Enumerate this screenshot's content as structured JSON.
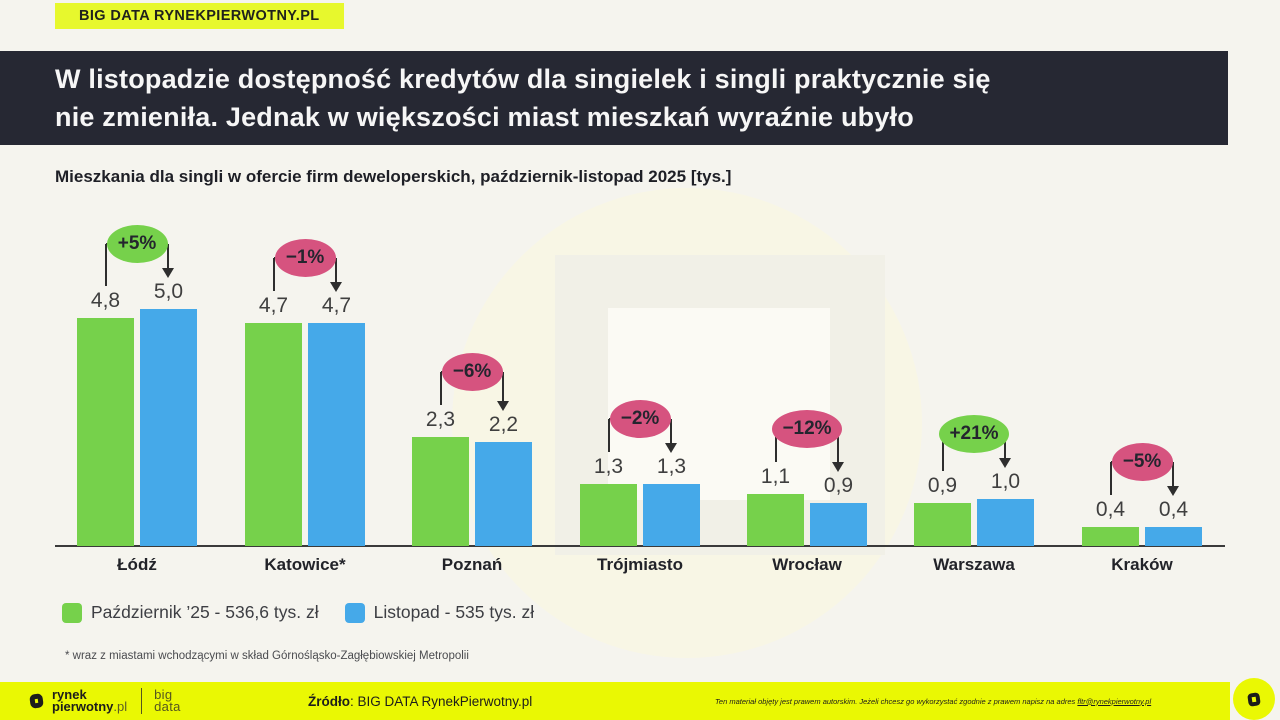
{
  "brand": {
    "label": "BIG DATA RYNEKPIERWOTNY.PL"
  },
  "headline": {
    "line1": "W listopadzie dostępność kredytów dla singielek i singli praktycznie się",
    "line2": "nie zmieniła. Jednak w większości miast mieszkań wyraźnie ubyło"
  },
  "chart_data": {
    "type": "bar",
    "title": "Mieszkania dla singli w ofercie firm deweloperskich, październik-listopad 2025 [tys.]",
    "categories": [
      "Łódź",
      "Katowice*",
      "Poznań",
      "Trójmiasto",
      "Wrocław",
      "Warszawa",
      "Kraków"
    ],
    "series": [
      {
        "name": "Październik ’25 - 536,6 tys. zł",
        "color": "#76d14b",
        "values": [
          4.8,
          4.7,
          2.3,
          1.3,
          1.1,
          0.9,
          0.4
        ],
        "labels": [
          "4,8",
          "4,7",
          "2,3",
          "1,3",
          "1,1",
          "0,9",
          "0,4"
        ]
      },
      {
        "name": "Listopad - 535 tys. zł",
        "color": "#45a9e9",
        "values": [
          5.0,
          4.7,
          2.2,
          1.3,
          0.9,
          1.0,
          0.4
        ],
        "labels": [
          "5,0",
          "4,7",
          "2,2",
          "1,3",
          "0,9",
          "1,0",
          "0,4"
        ]
      }
    ],
    "change_badges": [
      {
        "label": "+5%",
        "positive": true
      },
      {
        "label": "−1%",
        "positive": false
      },
      {
        "label": "−6%",
        "positive": false
      },
      {
        "label": "−2%",
        "positive": false
      },
      {
        "label": "−12%",
        "positive": false
      },
      {
        "label": "+21%",
        "positive": true
      },
      {
        "label": "−5%",
        "positive": false
      }
    ],
    "ylim": [
      0,
      5.2
    ],
    "grid": false,
    "legend_position": "bottom"
  },
  "footnote": "* wraz z miastami wchodzącymi w skład Górnośląsko-Zagłębiowskiej Metropolii",
  "footer": {
    "logo_top": "rynek",
    "logo_bold": "pierwotny",
    "logo_suffix": ".pl",
    "big1": "big",
    "big2": "data",
    "source_label": "Źródło",
    "source_rest": ": BIG DATA RynekPierwotny.pl",
    "fineprint": "Ten materiał objęty jest prawem autorskim. Jeżeli chcesz go wykorzystać zgodnie z prawem napisz na adres ",
    "email": "fltr@rynekpierwotny.pl"
  },
  "colors": {
    "background": "#f5f4ee",
    "panel_dark": "#262833",
    "brand_yellow": "#e7f82d",
    "footer_yellow": "#eaf803",
    "bar_october": "#76d14b",
    "bar_november": "#45a9e9",
    "badge_positive": "#76d14b",
    "badge_negative": "#d6537f",
    "connector": "#2e2e2e"
  }
}
